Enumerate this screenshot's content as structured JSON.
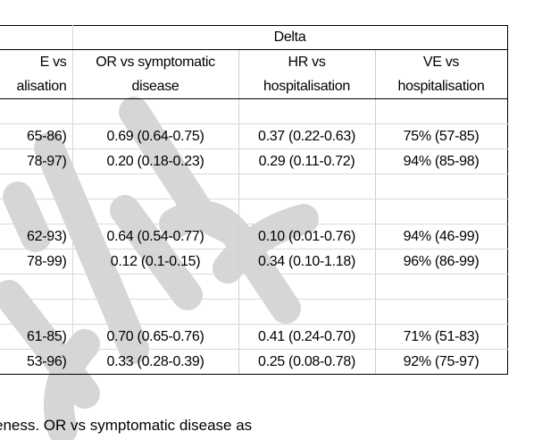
{
  "header": {
    "group": "Delta",
    "left_col": [
      "E vs",
      "alisation"
    ],
    "columns": [
      [
        "OR vs symptomatic",
        "disease"
      ],
      [
        "HR vs",
        "hospitalisation"
      ],
      [
        "VE vs",
        "hospitalisation"
      ]
    ]
  },
  "rows": [
    [
      "",
      "",
      "",
      ""
    ],
    [
      "65-86)",
      "0.69 (0.64-0.75)",
      "0.37 (0.22-0.63)",
      "75% (57-85)"
    ],
    [
      "78-97)",
      "0.20 (0.18-0.23)",
      "0.29 (0.11-0.72)",
      "94% (85-98)"
    ],
    [
      "",
      "",
      "",
      ""
    ],
    [
      "",
      "",
      "",
      ""
    ],
    [
      "62-93)",
      "0.64 (0.54-0.77)",
      "0.10 (0.01-0.76)",
      "94% (46-99)"
    ],
    [
      "78-99)",
      "0.12 (0.1-0.15)",
      "0.34 (0.10-1.18)",
      "96% (86-99)"
    ],
    [
      "",
      "",
      "",
      ""
    ],
    [
      "",
      "",
      "",
      ""
    ],
    [
      "61-85)",
      "0.70 (0.65-0.76)",
      "0.41 (0.24-0.70)",
      "71% (51-83)"
    ],
    [
      "53-96)",
      "0.33 (0.28-0.39)",
      "0.25 (0.08-0.78)",
      "92% (75-97)"
    ]
  ],
  "footer_text": "eness. OR vs symptomatic disease as",
  "watermark_color": "#c8c8c8"
}
